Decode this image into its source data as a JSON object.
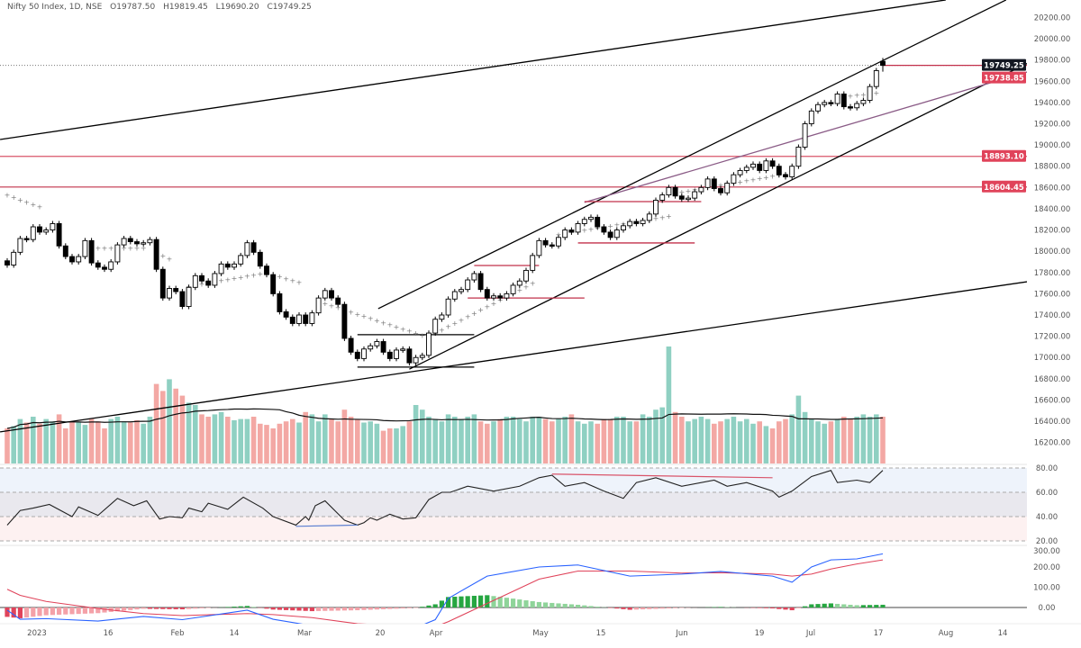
{
  "header": {
    "symbol": "Nifty 50 Index, 1D, NSE",
    "open": "O19787.50",
    "high": "H19819.45",
    "low": "L19690.20",
    "close": "C19749.25"
  },
  "chart_data": {
    "type": "candlestick",
    "price_axis": {
      "ticks": [
        "16200.00",
        "16400.00",
        "16600.00",
        "16800.00",
        "17000.00",
        "17200.00",
        "17400.00",
        "17600.00",
        "17800.00",
        "18000.00",
        "18200.00",
        "18400.00",
        "18600.00",
        "18800.00",
        "19000.00",
        "19200.00",
        "19400.00",
        "19600.00",
        "19800.00",
        "20000.00",
        "20200.00"
      ],
      "range": [
        16100,
        20250
      ]
    },
    "time_axis": {
      "ticks": [
        "2023",
        "16",
        "Feb",
        "14",
        "Mar",
        "20",
        "Apr",
        "May",
        "15",
        "Jun",
        "19",
        "Jul",
        "17",
        "Aug",
        "14"
      ]
    },
    "close": [
      17870,
      17990,
      18120,
      18110,
      18230,
      18180,
      18200,
      18260,
      18050,
      17950,
      17900,
      17950,
      18100,
      17890,
      17850,
      17830,
      17900,
      18060,
      18120,
      18090,
      18070,
      18080,
      18110,
      17830,
      17560,
      17650,
      17620,
      17480,
      17660,
      17770,
      17720,
      17680,
      17790,
      17880,
      17850,
      17880,
      17960,
      18080,
      17990,
      17860,
      17780,
      17600,
      17430,
      17380,
      17320,
      17400,
      17320,
      17420,
      17560,
      17630,
      17560,
      17500,
      17180,
      17050,
      16990,
      17080,
      17110,
      17150,
      17050,
      16990,
      17070,
      17080,
      16950,
      17000,
      17020,
      17230,
      17360,
      17400,
      17550,
      17620,
      17640,
      17730,
      17790,
      17640,
      17560,
      17580,
      17560,
      17600,
      17680,
      17720,
      17820,
      17960,
      18100,
      18060,
      18050,
      18130,
      18200,
      18180,
      18260,
      18300,
      18320,
      18230,
      18180,
      18130,
      18200,
      18240,
      18280,
      18260,
      18290,
      18350,
      18480,
      18530,
      18600,
      18520,
      18490,
      18500,
      18560,
      18600,
      18680,
      18590,
      18550,
      18640,
      18720,
      18760,
      18790,
      18820,
      18760,
      18850,
      18800,
      18720,
      18700,
      18800,
      18980,
      19200,
      19320,
      19380,
      19400,
      19390,
      19480,
      19360,
      19350,
      19390,
      19420,
      19550,
      19700,
      19749.25
    ],
    "last_candle": {
      "open": 19787.5,
      "high": 19819.45,
      "low": 19690.2,
      "close": 19749.25
    },
    "volume": [
      30,
      32,
      38,
      35,
      40,
      34,
      38,
      36,
      42,
      30,
      36,
      35,
      33,
      38,
      36,
      30,
      38,
      40,
      36,
      35,
      37,
      34,
      40,
      68,
      62,
      72,
      64,
      58,
      52,
      50,
      42,
      40,
      42,
      44,
      40,
      37,
      38,
      38,
      40,
      34,
      33,
      30,
      34,
      36,
      38,
      35,
      44,
      42,
      36,
      42,
      38,
      36,
      46,
      40,
      38,
      35,
      36,
      34,
      28,
      30,
      30,
      32,
      36,
      50,
      46,
      40,
      38,
      36,
      42,
      40,
      38,
      40,
      42,
      36,
      34,
      36,
      38,
      40,
      40,
      38,
      36,
      40,
      40,
      38,
      36,
      38,
      40,
      42,
      36,
      34,
      36,
      34,
      38,
      38,
      40,
      40,
      36,
      36,
      42,
      40,
      46,
      48,
      100,
      44,
      40,
      36,
      38,
      40,
      38,
      34,
      36,
      38,
      40,
      36,
      38,
      34,
      36,
      32,
      30,
      36,
      38,
      42,
      58,
      44,
      38,
      36,
      34,
      36,
      38,
      40,
      38,
      40,
      42,
      40,
      42,
      40
    ],
    "price_labels": [
      {
        "value": "19749.25",
        "price": 19749.25,
        "color": "#131722"
      },
      {
        "value": "19738.85",
        "price": 19690,
        "color": "#e0435a"
      },
      {
        "value": "18893.10",
        "price": 18893.1,
        "color": "#e0435a"
      },
      {
        "value": "18604.45",
        "price": 18604.45,
        "color": "#e0435a"
      }
    ],
    "horizontal_lines": [
      {
        "price": 18893.1,
        "color": "#d9546a"
      },
      {
        "price": 18604.45,
        "color": "#c2304a"
      }
    ],
    "trendlines": [
      {
        "from": [
          -1.1,
          19052
        ],
        "to": [
          144.7,
          20365
        ],
        "color": "#000000"
      },
      {
        "from": [
          57.2,
          17460
        ],
        "to": [
          154,
          20365
        ],
        "color": "#000000"
      },
      {
        "from": [
          62,
          16890
        ],
        "to": [
          158,
          19790
        ],
        "color": "#000000"
      },
      {
        "from": [
          -1.1,
          16300
        ],
        "to": [
          158,
          17720
        ],
        "color": "#000000"
      },
      {
        "from": [
          89,
          18460
        ],
        "to": [
          158,
          19700
        ],
        "color": "#8a5b86"
      }
    ],
    "range_lines": [
      {
        "from": [
          54,
          17215
        ],
        "to": [
          72,
          17215
        ],
        "color": "#000000"
      },
      {
        "from": [
          54,
          16910
        ],
        "to": [
          72,
          16910
        ],
        "color": "#000000"
      },
      {
        "from": [
          72,
          17866
        ],
        "to": [
          82,
          17866
        ],
        "color": "#c2304a"
      },
      {
        "from": [
          71,
          17560
        ],
        "to": [
          89,
          17560
        ],
        "color": "#c2304a"
      },
      {
        "from": [
          89,
          18467
        ],
        "to": [
          107,
          18467
        ],
        "color": "#c2304a"
      },
      {
        "from": [
          88,
          18078
        ],
        "to": [
          106,
          18078
        ],
        "color": "#c2304a"
      }
    ],
    "trail_stops": [
      [
        [
          0,
          18530
        ],
        [
          5,
          18420
        ]
      ],
      [
        [
          12,
          18030
        ],
        [
          21,
          18030
        ]
      ],
      [
        [
          23,
          17990
        ],
        [
          25,
          17930
        ]
      ],
      [
        [
          28,
          17670
        ],
        [
          40,
          17800
        ]
      ],
      [
        [
          41,
          17780
        ],
        [
          45,
          17710
        ]
      ],
      [
        [
          48,
          17530
        ],
        [
          64,
          17210
        ]
      ],
      [
        [
          66,
          17230
        ],
        [
          81,
          17700
        ]
      ],
      [
        [
          85,
          18160
        ],
        [
          102,
          18330
        ]
      ],
      [
        [
          104,
          18560
        ],
        [
          121,
          18740
        ]
      ],
      [
        [
          128,
          19450
        ],
        [
          134,
          19490
        ]
      ]
    ],
    "rsi": {
      "ticks": [
        "80.00",
        "60.00",
        "40.00",
        "20.00"
      ],
      "points": [
        [
          0,
          33
        ],
        [
          2,
          45
        ],
        [
          4,
          47
        ],
        [
          6.5,
          50
        ],
        [
          10,
          40
        ],
        [
          11,
          48
        ],
        [
          14,
          41
        ],
        [
          17,
          55
        ],
        [
          19.5,
          49
        ],
        [
          21.5,
          53
        ],
        [
          23.5,
          38
        ],
        [
          25,
          40
        ],
        [
          27,
          39
        ],
        [
          28,
          47
        ],
        [
          30,
          44
        ],
        [
          31,
          51
        ],
        [
          34,
          46
        ],
        [
          36.4,
          56
        ],
        [
          39.4,
          47
        ],
        [
          41,
          40
        ],
        [
          44.5,
          33
        ],
        [
          46,
          40
        ],
        [
          46.5,
          37
        ],
        [
          47.5,
          49
        ],
        [
          49,
          53
        ],
        [
          52,
          37
        ],
        [
          54,
          33
        ],
        [
          55,
          35
        ],
        [
          56,
          39
        ],
        [
          57,
          37
        ],
        [
          59,
          42
        ],
        [
          61,
          38
        ],
        [
          63,
          39
        ],
        [
          65,
          54
        ],
        [
          67,
          60
        ],
        [
          68.3,
          60
        ],
        [
          71,
          65
        ],
        [
          75,
          61
        ],
        [
          79,
          65
        ],
        [
          82,
          72
        ],
        [
          84,
          74
        ],
        [
          86,
          65
        ],
        [
          89,
          68
        ],
        [
          92,
          61
        ],
        [
          95,
          55
        ],
        [
          97,
          68
        ],
        [
          100,
          72
        ],
        [
          104,
          65
        ],
        [
          109,
          70
        ],
        [
          111,
          65
        ],
        [
          114,
          68
        ],
        [
          118,
          61
        ],
        [
          119,
          56
        ],
        [
          121,
          61
        ],
        [
          124,
          73
        ],
        [
          127,
          78
        ],
        [
          128,
          68
        ],
        [
          131,
          70
        ],
        [
          133,
          68
        ],
        [
          135,
          78
        ]
      ],
      "divergence_lines": [
        {
          "from": [
            84,
            75
          ],
          "to": [
            118,
            72
          ],
          "color": "#d9546a"
        },
        {
          "from": [
            44.5,
            32
          ],
          "to": [
            54,
            33
          ],
          "color": "#5b7fd1"
        }
      ]
    },
    "macd": {
      "ticks": [
        "300.00",
        "200.00",
        "100.00",
        "0.00"
      ],
      "points": [
        [
          0,
          -13,
          90
        ],
        [
          2,
          -58,
          60
        ],
        [
          6,
          -55,
          30
        ],
        [
          14,
          -67,
          -5
        ],
        [
          21,
          -44,
          -30
        ],
        [
          27,
          -60,
          -40
        ],
        [
          37,
          -13,
          -30
        ],
        [
          41,
          -58,
          -35
        ],
        [
          47,
          -90,
          -50
        ],
        [
          54,
          -110,
          -80
        ],
        [
          63,
          -100,
          -95
        ],
        [
          66,
          -60,
          -95
        ],
        [
          68,
          45,
          -70
        ],
        [
          74,
          155,
          20
        ],
        [
          82,
          200,
          140
        ],
        [
          88,
          210,
          180
        ],
        [
          96,
          155,
          180
        ],
        [
          104,
          165,
          170
        ],
        [
          110,
          178,
          172
        ],
        [
          118,
          155,
          165
        ],
        [
          121,
          125,
          155
        ],
        [
          124,
          200,
          165
        ],
        [
          127,
          235,
          190
        ],
        [
          131,
          240,
          215
        ],
        [
          135,
          265,
          235
        ]
      ],
      "macd_color": "#2962ff",
      "signal_color": "#e0435a"
    },
    "colors": {
      "up_volume": "#8fd0c2",
      "down_volume": "#f3a8a4",
      "up_candle": "#ffffff",
      "down_candle": "#000000"
    }
  }
}
